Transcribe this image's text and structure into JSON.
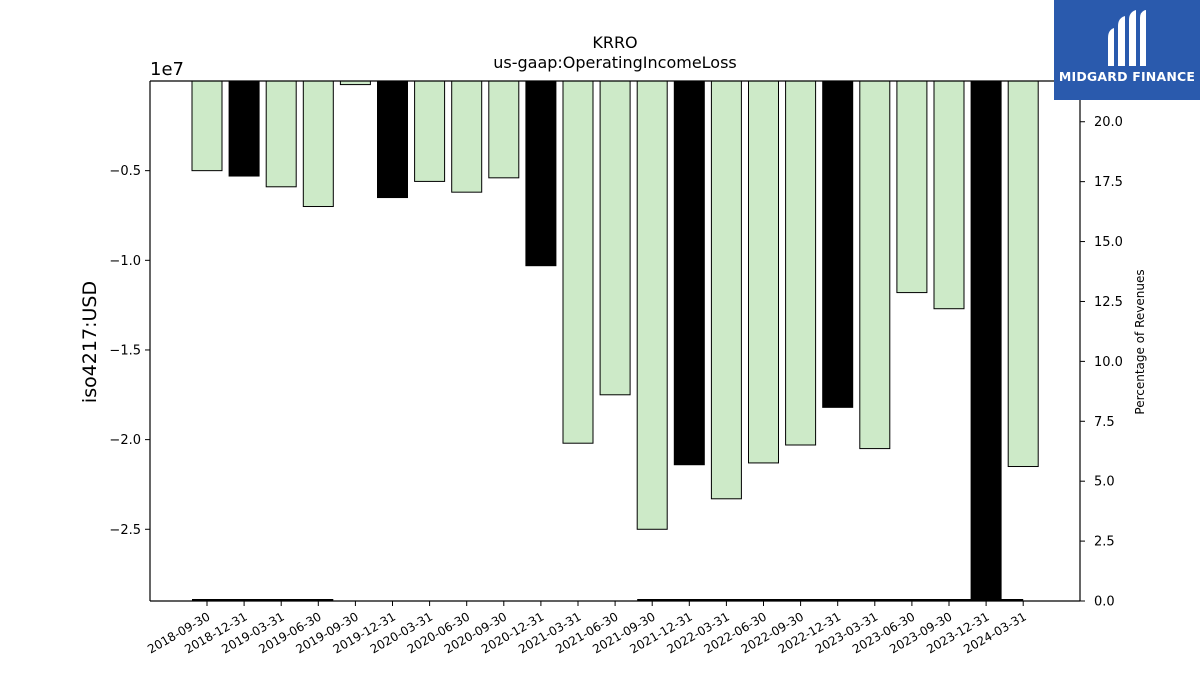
{
  "chart_data": {
    "type": "bar",
    "title": "KRRO",
    "subtitle": "us-gaap:OperatingIncomeLoss",
    "ylabel": "iso4217:USD",
    "ylabel_right": "Percentage of Revenues",
    "offset_label": "1e7",
    "scale": 10000000,
    "ylim": [
      -2.9,
      0.0
    ],
    "yticks": [
      -0.5,
      -1.0,
      -1.5,
      -2.0,
      -2.5
    ],
    "ytick_labels": [
      "−0.5",
      "−1.0",
      "−1.5",
      "−2.0",
      "−2.5"
    ],
    "y2lim": [
      0,
      21.7
    ],
    "y2ticks": [
      0.0,
      2.5,
      5.0,
      7.5,
      10.0,
      12.5,
      15.0,
      17.5,
      20.0
    ],
    "y2tick_labels": [
      "0.0",
      "2.5",
      "5.0",
      "7.5",
      "10.0",
      "12.5",
      "15.0",
      "17.5",
      "20.0"
    ],
    "categories": [
      "2018-09-30",
      "2018-12-31",
      "2019-03-31",
      "2019-06-30",
      "2019-09-30",
      "2019-12-31",
      "2020-03-31",
      "2020-06-30",
      "2020-09-30",
      "2020-12-31",
      "2021-03-31",
      "2021-06-30",
      "2021-09-30",
      "2021-12-31",
      "2022-03-31",
      "2022-06-30",
      "2022-09-30",
      "2022-12-31",
      "2023-03-31",
      "2023-06-30",
      "2023-09-30",
      "2023-12-31",
      "2024-03-31"
    ],
    "values": [
      -0.5,
      -0.53,
      -0.59,
      -0.7,
      -0.02,
      -0.65,
      -0.56,
      -0.62,
      -0.54,
      -1.03,
      -2.02,
      -1.75,
      -2.5,
      -2.14,
      -2.33,
      -2.13,
      -2.03,
      -1.82,
      -2.05,
      -1.18,
      -1.27,
      -2.9,
      -2.15
    ],
    "annual": [
      false,
      true,
      false,
      false,
      false,
      true,
      false,
      false,
      false,
      true,
      false,
      false,
      false,
      true,
      false,
      false,
      false,
      true,
      false,
      false,
      false,
      true,
      false
    ],
    "colors": {
      "quarterly": "#cdeac8",
      "annual": "#000000",
      "edge": "#000000"
    },
    "grid": false
  },
  "logo": {
    "text": "MIDGARD FINANCE",
    "background": "#2a5aad"
  }
}
